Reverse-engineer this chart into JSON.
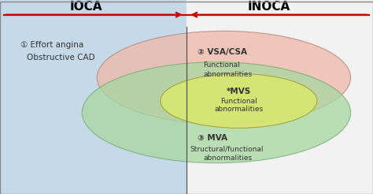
{
  "title_ioca": "IOCA",
  "title_inoca": "INOCA",
  "arrow_color": "#cc0000",
  "divider_color": "#555555",
  "bg_left_color": "#c5d9e8",
  "bg_right_color": "#f0f0f0",
  "ellipse_pink_color": "#f0b8a8",
  "ellipse_green_color": "#a8d8a0",
  "ellipse_yellow_color": "#d8e870",
  "label1_line1": "① Effort angina",
  "label1_line2": "Obstructive CAD",
  "label2_line1": "② VSA/CSA",
  "label2_line2": "Functional",
  "label2_line3": "abnormalities",
  "label3_line1": "*MVS",
  "label3_line2": "Functional",
  "label3_line3": "abnormalities",
  "label4_line1": "③ MVA",
  "label4_line2": "Structural/functional",
  "label4_line3": "abnormalities",
  "title_fontsize": 11,
  "label_fontsize": 7.5,
  "small_label_fontsize": 6.5
}
